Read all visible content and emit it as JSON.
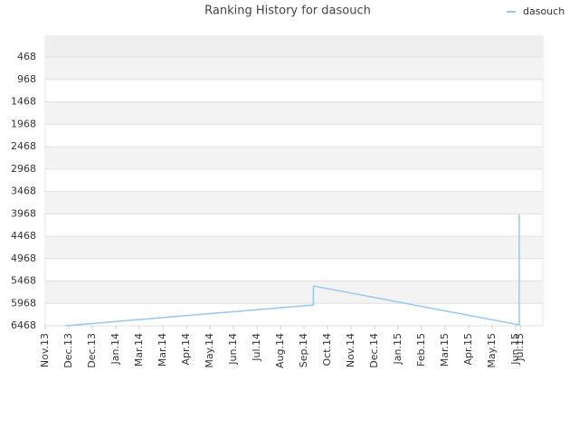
{
  "chart_data": {
    "type": "line",
    "title": "Ranking History for dasouch",
    "xlim": [
      0,
      20
    ],
    "xticks": [
      {
        "value": 0,
        "label": "Nov.13"
      },
      {
        "value": 1,
        "label": "Dec.13"
      },
      {
        "value": 2,
        "label": "Dec.13"
      },
      {
        "value": 3,
        "label": "Jan.14"
      },
      {
        "value": 4,
        "label": "Mar.14"
      },
      {
        "value": 5,
        "label": "Mar.14"
      },
      {
        "value": 6,
        "label": "Apr.14"
      },
      {
        "value": 7,
        "label": "May.14"
      },
      {
        "value": 8,
        "label": "Jun.14"
      },
      {
        "value": 9,
        "label": "Jul.14"
      },
      {
        "value": 10,
        "label": "Aug.14"
      },
      {
        "value": 11,
        "label": "Sep.14"
      },
      {
        "value": 12,
        "label": "Oct.14"
      },
      {
        "value": 13,
        "label": "Nov.14"
      },
      {
        "value": 14,
        "label": "Dec.14"
      },
      {
        "value": 15,
        "label": "Jan.15"
      },
      {
        "value": 16,
        "label": "Feb.15"
      },
      {
        "value": 17,
        "label": "Mar.15"
      },
      {
        "value": 18,
        "label": "Apr.15"
      },
      {
        "value": 19,
        "label": "May.15"
      },
      {
        "value": 20,
        "label": "Jun.15"
      },
      {
        "value": 20.2,
        "label": "Jul.15"
      }
    ],
    "ylim": [
      6468,
      0
    ],
    "yticks": [
      468,
      968,
      1468,
      1968,
      2468,
      2968,
      3468,
      3968,
      4468,
      4968,
      5468,
      5968,
      6468
    ],
    "grid": true,
    "legend": "top-right",
    "series": [
      {
        "name": "dasouch",
        "color": "#99c8ee",
        "x": [
          0.85,
          11.4,
          11.4,
          20.15,
          20.15
        ],
        "values": [
          6468,
          6003,
          5579,
          6448,
          3983
        ]
      }
    ]
  }
}
